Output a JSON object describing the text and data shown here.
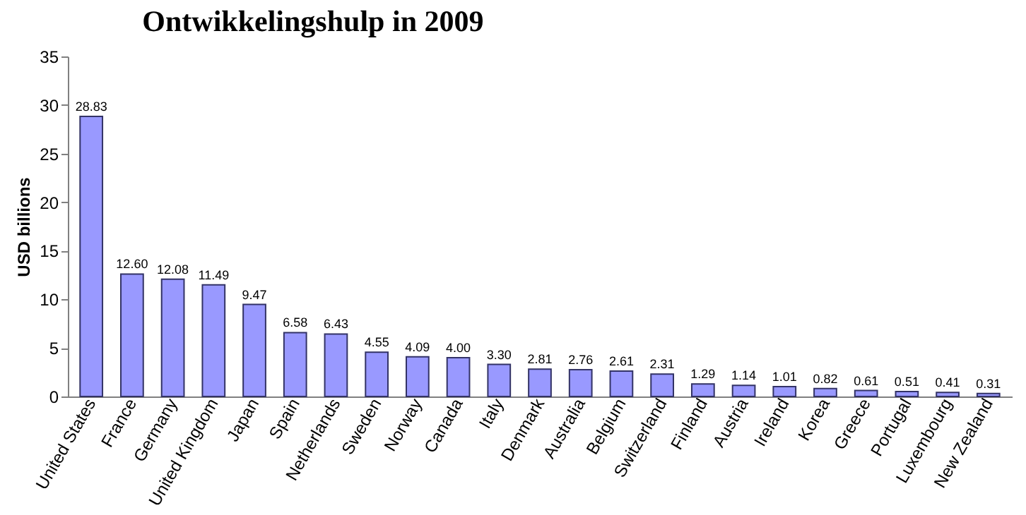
{
  "chart_data": {
    "type": "bar",
    "title": "Ontwikkelingshulp in 2009",
    "ylabel": "USD billions",
    "categories": [
      "United States",
      "France",
      "Germany",
      "United Kingdom",
      "Japan",
      "Spain",
      "Netherlands",
      "Sweden",
      "Norway",
      "Canada",
      "Italy",
      "Denmark",
      "Australia",
      "Belgium",
      "Switzerland",
      "Finland",
      "Austria",
      "Ireland",
      "Korea",
      "Greece",
      "Portugal",
      "Luxembourg",
      "New Zealand"
    ],
    "values": [
      28.83,
      12.6,
      12.08,
      11.49,
      9.47,
      6.58,
      6.43,
      4.55,
      4.09,
      4.0,
      3.3,
      2.81,
      2.76,
      2.61,
      2.31,
      1.29,
      1.14,
      1.01,
      0.82,
      0.61,
      0.51,
      0.41,
      0.31
    ],
    "value_labels": [
      "28.83",
      "12.60",
      "12.08",
      "11.49",
      "9.47",
      "6.58",
      "6.43",
      "4.55",
      "4.09",
      "4.00",
      "3.30",
      "2.81",
      "2.76",
      "2.61",
      "2.31",
      "1.29",
      "1.14",
      "1.01",
      "0.82",
      "0.61",
      "0.51",
      "0.41",
      "0.31"
    ],
    "color": "#9999ff",
    "ylim": [
      0,
      35
    ],
    "yticks": [
      0,
      5,
      10,
      15,
      20,
      25,
      30,
      35
    ],
    "grid": false
  }
}
